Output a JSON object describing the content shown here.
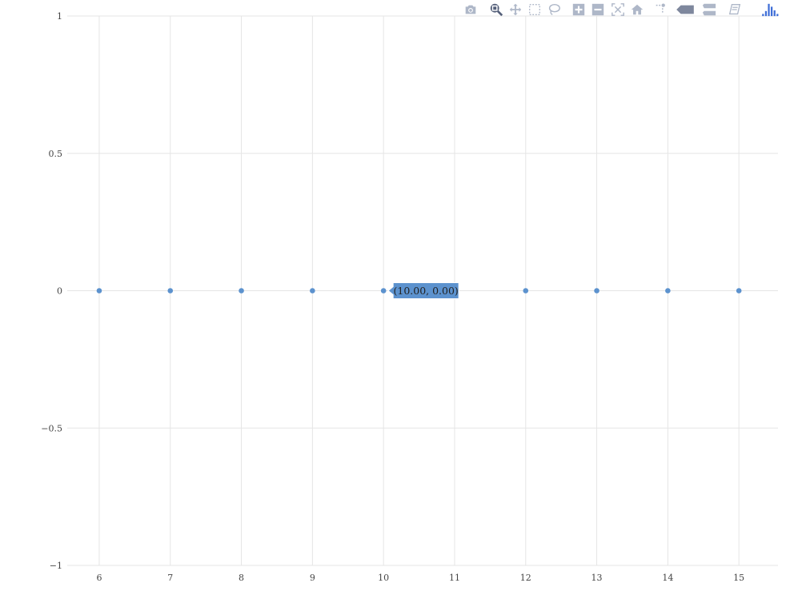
{
  "chart_data": {
    "type": "scatter",
    "title": "",
    "xlabel": "",
    "ylabel": "",
    "x": [
      6,
      7,
      8,
      9,
      10,
      11,
      12,
      13,
      14,
      15
    ],
    "y": [
      0,
      0,
      0,
      0,
      0,
      0,
      0,
      0,
      0,
      0
    ],
    "xlim": [
      5.55,
      15.55
    ],
    "ylim": [
      -1,
      1
    ],
    "x_ticks": [
      6,
      7,
      8,
      9,
      10,
      11,
      12,
      13,
      14,
      15
    ],
    "y_ticks": [
      1,
      0.5,
      0,
      -0.5,
      -1
    ],
    "y_tick_labels": [
      "1",
      "0.5",
      "0",
      "−0.5",
      "−1"
    ],
    "grid": true,
    "marker_color": "#5c92ce",
    "hover": {
      "x": 10,
      "y": 0,
      "label": "(10.00, 0.00)"
    }
  },
  "modebar": {
    "buttons": [
      {
        "name": "camera-icon"
      },
      {
        "name": "zoom-icon"
      },
      {
        "name": "pan-icon"
      },
      {
        "name": "box-select-icon"
      },
      {
        "name": "lasso-select-icon"
      },
      {
        "name": "zoom-in-icon"
      },
      {
        "name": "zoom-out-icon"
      },
      {
        "name": "autoscale-icon"
      },
      {
        "name": "home-icon"
      },
      {
        "name": "spike-lines-icon"
      },
      {
        "name": "hover-closest-icon"
      },
      {
        "name": "hover-compare-icon"
      },
      {
        "name": "edit-icon"
      },
      {
        "name": "plotly-logo-icon"
      }
    ]
  }
}
